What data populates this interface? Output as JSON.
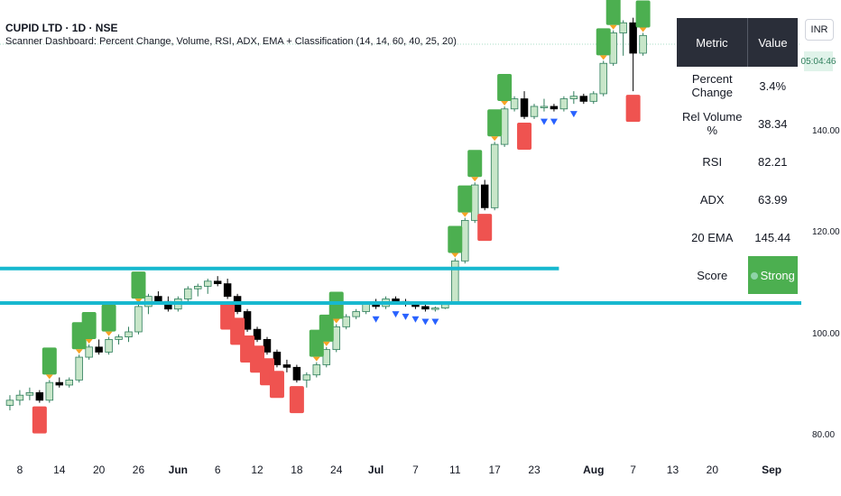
{
  "header": {
    "title": "CUPID LTD · 1D · NSE",
    "indicator": "Scanner Dashboard: Percent Change, Volume, RSI, ADX, EMA + Classification (14, 14, 60, 40, 25, 20)"
  },
  "currency": "INR",
  "price_tag": "05:04:46",
  "dashboard": {
    "headers": [
      "Metric",
      "Value"
    ],
    "rows": [
      {
        "metric": "Percent Change",
        "value": "3.4%"
      },
      {
        "metric": "Rel Volume %",
        "value": "38.34"
      },
      {
        "metric": "RSI",
        "value": "82.21"
      },
      {
        "metric": "ADX",
        "value": "63.99"
      },
      {
        "metric": "20 EMA",
        "value": "145.44"
      }
    ],
    "score": {
      "metric": "Score",
      "value": "Strong"
    }
  },
  "colors": {
    "up": "#c8e6c9",
    "down": "#000000",
    "hline": "#17b8cf",
    "bull_label": "#4caf50",
    "bear_label": "#ef5350",
    "vol_marker": "#2962ff",
    "up_arrow": "#f7a325"
  },
  "chart_data": {
    "type": "candlestick",
    "symbol": "CUPID LTD",
    "interval": "1D",
    "exchange": "NSE",
    "y_ticks": [
      80,
      100,
      120,
      140
    ],
    "y_tick_labels": [
      "80.00",
      "100.00",
      "120.00",
      "140.00"
    ],
    "ylim": [
      77,
      166
    ],
    "x_ticks": [
      {
        "label": "8",
        "bar": 1
      },
      {
        "label": "14",
        "bar": 5
      },
      {
        "label": "20",
        "bar": 9
      },
      {
        "label": "26",
        "bar": 13
      },
      {
        "label": "Jun",
        "bar": 17
      },
      {
        "label": "6",
        "bar": 21
      },
      {
        "label": "12",
        "bar": 25
      },
      {
        "label": "18",
        "bar": 29
      },
      {
        "label": "24",
        "bar": 33
      },
      {
        "label": "Jul",
        "bar": 37
      },
      {
        "label": "7",
        "bar": 41
      },
      {
        "label": "11",
        "bar": 45
      },
      {
        "label": "17",
        "bar": 49
      },
      {
        "label": "23",
        "bar": 53
      },
      {
        "label": "Aug",
        "bar": 59
      },
      {
        "label": "7",
        "bar": 63
      },
      {
        "label": "13",
        "bar": 67
      },
      {
        "label": "20",
        "bar": 71
      },
      {
        "label": "Sep",
        "bar": 77
      }
    ],
    "ohlc": [
      [
        86,
        88,
        85,
        87
      ],
      [
        87,
        89,
        86,
        88
      ],
      [
        88,
        89.5,
        87,
        88.5
      ],
      [
        88.5,
        89,
        86.5,
        87
      ],
      [
        87,
        91,
        86.5,
        90.5
      ],
      [
        90.5,
        91.5,
        89.5,
        90
      ],
      [
        90,
        91.5,
        89.5,
        91
      ],
      [
        91,
        96,
        90.5,
        95.5
      ],
      [
        95.5,
        98,
        95,
        97.5
      ],
      [
        97.5,
        99,
        96,
        96.5
      ],
      [
        96.5,
        99.5,
        96,
        99
      ],
      [
        99,
        100,
        98,
        99.5
      ],
      [
        99.5,
        101.5,
        98.5,
        100.5
      ],
      [
        100.5,
        106,
        100,
        105.5
      ],
      [
        105.5,
        108,
        104,
        107.5
      ],
      [
        107.5,
        108.5,
        106,
        106.5
      ],
      [
        106.5,
        107.5,
        104.5,
        105
      ],
      [
        105,
        107.5,
        104.5,
        107
      ],
      [
        107,
        109.5,
        106.5,
        109
      ],
      [
        109,
        110,
        107.5,
        109.5
      ],
      [
        109.5,
        111,
        108,
        110.5
      ],
      [
        110.5,
        111.5,
        109.5,
        110
      ],
      [
        110,
        111,
        107,
        107.5
      ],
      [
        107.5,
        108,
        104,
        104.5
      ],
      [
        104.5,
        105,
        100.5,
        101
      ],
      [
        101,
        101.5,
        98.5,
        99
      ],
      [
        99,
        99.5,
        96,
        96.5
      ],
      [
        96.5,
        97,
        93.5,
        94
      ],
      [
        94,
        95,
        92.5,
        93.5
      ],
      [
        93.5,
        94,
        90.5,
        91
      ],
      [
        91,
        92.5,
        89.5,
        92
      ],
      [
        92,
        94.5,
        91.5,
        94
      ],
      [
        94,
        97.5,
        93.5,
        97
      ],
      [
        97,
        102,
        96.5,
        101.5
      ],
      [
        101.5,
        104,
        101,
        103.5
      ],
      [
        103.5,
        105,
        103,
        104.5
      ],
      [
        104.5,
        106.5,
        104,
        106
      ],
      [
        106,
        107,
        105,
        105.5
      ],
      [
        105.5,
        107.5,
        105,
        107
      ],
      [
        107,
        107.5,
        106,
        106.5
      ],
      [
        106.5,
        107,
        105.5,
        106
      ],
      [
        106,
        106.5,
        105,
        105.5
      ],
      [
        105.5,
        106,
        104.5,
        105
      ],
      [
        105,
        105.5,
        104.5,
        105.2
      ],
      [
        105.2,
        106.5,
        105,
        106.2
      ],
      [
        106.2,
        115,
        106,
        114.5
      ],
      [
        114.5,
        123,
        114,
        122.5
      ],
      [
        122.5,
        130,
        122,
        129.5
      ],
      [
        129.5,
        130.5,
        124.5,
        125
      ],
      [
        125,
        138,
        124.5,
        137.5
      ],
      [
        137.5,
        145,
        137,
        144.5
      ],
      [
        144.5,
        147,
        144,
        146.5
      ],
      [
        146.5,
        148,
        142.5,
        143
      ],
      [
        143,
        145.5,
        142.5,
        145
      ],
      [
        145,
        146.5,
        144,
        145
      ],
      [
        145,
        145.5,
        144,
        144.5
      ],
      [
        144.5,
        147,
        144,
        146.5
      ],
      [
        146.5,
        148,
        145.5,
        147
      ],
      [
        147,
        147.5,
        145.5,
        146
      ],
      [
        146,
        148,
        145.5,
        147.5
      ],
      [
        147.5,
        154,
        147,
        153.5
      ],
      [
        153.5,
        160,
        153,
        159.5
      ],
      [
        159.5,
        162,
        155,
        161.5
      ],
      [
        161.5,
        162.5,
        148,
        155.5
      ],
      [
        155.5,
        159.5,
        155,
        159
      ]
    ],
    "bar_range": [
      -1,
      80
    ],
    "horizontal_lines": [
      113,
      106.2
    ],
    "horizontal_line_bar_spans": [
      [
        -1,
        55.5
      ],
      [
        -1,
        80
      ]
    ],
    "ema_label": "20 EMA"
  }
}
